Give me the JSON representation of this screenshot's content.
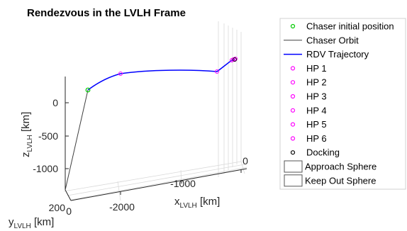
{
  "chart_data": {
    "type": "line3d",
    "title": "Rendezvous in the LVLH Frame",
    "xlabel": {
      "main": "x",
      "sub": "LVLH",
      "unit": " [km]"
    },
    "ylabel": {
      "main": "y",
      "sub": "LVLH",
      "unit": " [km]"
    },
    "zlabel": {
      "main": "z",
      "sub": "LVLH",
      "unit": " [km]"
    },
    "x_ticks": [
      "-2000",
      "-1000",
      "0"
    ],
    "y_ticks": [
      "0",
      "200"
    ],
    "z_ticks": [
      "0",
      "-500",
      "-1000"
    ],
    "grid": true,
    "legend_position": "right",
    "colors": {
      "chaser_initial": "#00cc00",
      "chaser_orbit": "#404040",
      "rdv_trajectory": "#0000ff",
      "hold_points": "#ff00ff",
      "docking": "#000000"
    },
    "legend": [
      {
        "label": "Chaser initial position",
        "kind": "marker",
        "color": "#00cc00"
      },
      {
        "label": "Chaser Orbit",
        "kind": "line",
        "color": "#404040"
      },
      {
        "label": "RDV Trajectory",
        "kind": "line",
        "color": "#0000ff"
      },
      {
        "label": "HP 1",
        "kind": "marker",
        "color": "#ff00ff"
      },
      {
        "label": "HP 2",
        "kind": "marker",
        "color": "#ff00ff"
      },
      {
        "label": "HP 3",
        "kind": "marker",
        "color": "#ff00ff"
      },
      {
        "label": "HP 4",
        "kind": "marker",
        "color": "#ff00ff"
      },
      {
        "label": "HP 5",
        "kind": "marker",
        "color": "#ff00ff"
      },
      {
        "label": "HP 6",
        "kind": "marker",
        "color": "#ff00ff"
      },
      {
        "label": "Docking",
        "kind": "marker",
        "color": "#000000"
      },
      {
        "label": "Approach Sphere",
        "kind": "box",
        "color": "#555555"
      },
      {
        "label": "Keep Out Sphere",
        "kind": "box",
        "color": "#555555"
      }
    ]
  }
}
